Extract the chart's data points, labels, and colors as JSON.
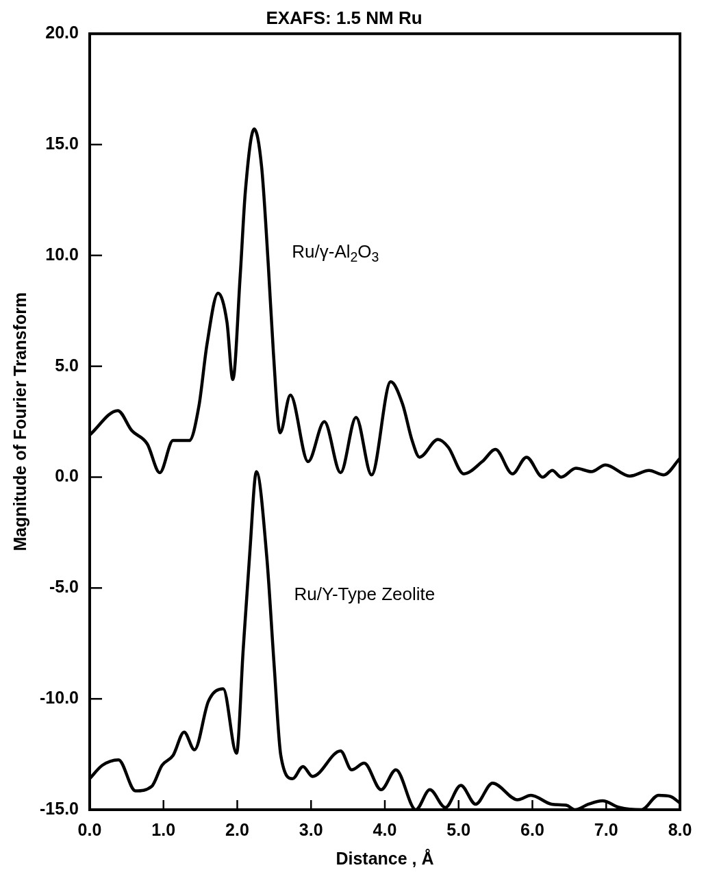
{
  "chart_data": {
    "type": "line",
    "title": "EXAFS: 1.5 NM Ru",
    "xlabel": "Distance , Å",
    "ylabel": "Magnitude of Fourier Transform",
    "xlim": [
      0,
      8
    ],
    "ylim": [
      -15,
      20
    ],
    "xticks": [
      {
        "value": 0,
        "label": "0.0"
      },
      {
        "value": 1,
        "label": "1.0"
      },
      {
        "value": 2,
        "label": "2.0"
      },
      {
        "value": 3,
        "label": "3.0"
      },
      {
        "value": 4,
        "label": "4.0"
      },
      {
        "value": 5,
        "label": "5.0"
      },
      {
        "value": 6,
        "label": "6.0"
      },
      {
        "value": 7,
        "label": "7.0"
      },
      {
        "value": 8,
        "label": "8.0"
      }
    ],
    "yticks": [
      {
        "value": -15,
        "label": "-15.0"
      },
      {
        "value": -10,
        "label": "-10.0"
      },
      {
        "value": -5,
        "label": "-5.0"
      },
      {
        "value": 0,
        "label": "0.0"
      },
      {
        "value": 5,
        "label": "5.0"
      },
      {
        "value": 10,
        "label": "10.0"
      },
      {
        "value": 15,
        "label": "15.0"
      },
      {
        "value": 20,
        "label": "20.0"
      }
    ],
    "marker": "none",
    "line_style": "solid",
    "series": [
      {
        "name": "Ru/γ-Al$_{2}$O$_{3}$",
        "color": "#000000",
        "x": [
          0,
          0.38,
          0.57,
          0.78,
          0.95,
          1.13,
          1.35,
          1.48,
          1.59,
          1.74,
          1.86,
          1.94,
          2.04,
          2.11,
          2.23,
          2.33,
          2.42,
          2.49,
          2.58,
          2.72,
          2.96,
          3.18,
          3.4,
          3.61,
          3.82,
          4.08,
          4.24,
          4.37,
          4.47,
          4.72,
          4.86,
          5.07,
          5.32,
          5.5,
          5.73,
          5.92,
          6.14,
          6.27,
          6.39,
          6.59,
          6.8,
          6.99,
          7.32,
          7.58,
          7.78,
          8.0
        ],
        "values": [
          1.9,
          3.0,
          2.1,
          1.5,
          0.2,
          1.65,
          1.65,
          3.2,
          6.0,
          8.3,
          7.0,
          4.4,
          9.1,
          12.9,
          15.7,
          14.0,
          9.6,
          5.6,
          2.0,
          3.7,
          0.7,
          2.5,
          0.2,
          2.7,
          0.1,
          4.3,
          3.3,
          1.65,
          0.9,
          1.7,
          1.35,
          0.15,
          0.7,
          1.25,
          0.15,
          0.9,
          0.0,
          0.3,
          0.0,
          0.4,
          0.25,
          0.55,
          0.05,
          0.3,
          0.1,
          0.85
        ]
      },
      {
        "name": "Ru/Y-Type Zeolite",
        "color": "#000000",
        "x": [
          0.0,
          0.17,
          0.39,
          0.62,
          0.84,
          0.98,
          1.13,
          1.28,
          1.42,
          1.61,
          1.81,
          1.99,
          2.08,
          2.17,
          2.26,
          2.4,
          2.5,
          2.59,
          2.75,
          2.89,
          3.02,
          3.4,
          3.55,
          3.72,
          3.95,
          4.15,
          4.42,
          4.61,
          4.82,
          5.03,
          5.23,
          5.46,
          5.8,
          5.98,
          6.26,
          6.46,
          6.58,
          6.76,
          6.95,
          7.18,
          7.48,
          7.71,
          7.87,
          8.0
        ],
        "values": [
          -13.6,
          -13.0,
          -12.75,
          -14.15,
          -13.95,
          -13.0,
          -12.55,
          -11.5,
          -12.3,
          -10.1,
          -9.55,
          -12.45,
          -7.8,
          -3.4,
          0.25,
          -3.6,
          -8.5,
          -12.55,
          -13.6,
          -13.05,
          -13.5,
          -12.35,
          -13.2,
          -12.9,
          -14.1,
          -13.2,
          -15.0,
          -14.1,
          -14.9,
          -13.9,
          -14.75,
          -13.8,
          -14.55,
          -14.35,
          -14.75,
          -14.8,
          -15.0,
          -14.75,
          -14.6,
          -14.9,
          -15.0,
          -14.35,
          -14.4,
          -14.7
        ]
      }
    ]
  }
}
